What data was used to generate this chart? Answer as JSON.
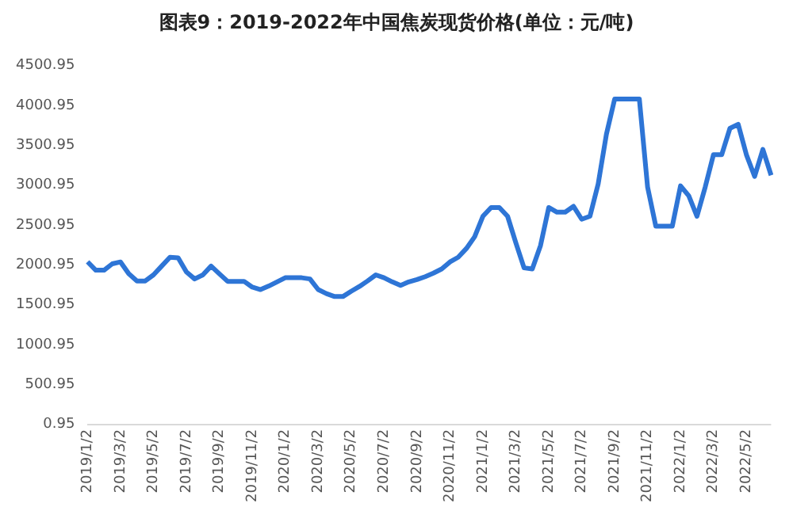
{
  "chart_data": {
    "type": "line",
    "title": "图表9：2019-2022年中国焦炭现货价格(单位：元/吨)",
    "categories": [
      "2019/1/2",
      null,
      null,
      null,
      "2019/3/2",
      null,
      null,
      null,
      "2019/5/2",
      null,
      null,
      null,
      "2019/7/2",
      null,
      null,
      null,
      "2019/9/2",
      null,
      null,
      null,
      "2019/11/2",
      null,
      null,
      null,
      "2020/1/2",
      null,
      null,
      null,
      "2020/3/2",
      null,
      null,
      null,
      "2020/5/2",
      null,
      null,
      null,
      "2020/7/2",
      null,
      null,
      null,
      "2020/9/2",
      null,
      null,
      null,
      "2020/11/2",
      null,
      null,
      null,
      "2021/1/2",
      null,
      null,
      null,
      "2021/3/2",
      null,
      null,
      null,
      "2021/5/2",
      null,
      null,
      null,
      "2021/7/2",
      null,
      null,
      null,
      "2021/9/2",
      null,
      null,
      null,
      "2021/11/2",
      null,
      null,
      null,
      "2022/1/2",
      null,
      null,
      null,
      "2022/3/2",
      null,
      null,
      null,
      "2022/5/2",
      null,
      null,
      null
    ],
    "series": [
      {
        "color": "#2e75d6",
        "values": [
          2040,
          1935,
          1935,
          2015,
          2038,
          1890,
          1800,
          1800,
          1876,
          1986,
          2097,
          2090,
          1913,
          1825,
          1876,
          1986,
          1890,
          1795,
          1795,
          1795,
          1722,
          1692,
          1736,
          1788,
          1840,
          1840,
          1840,
          1825,
          1692,
          1641,
          1604,
          1604,
          1670,
          1730,
          1800,
          1876,
          1840,
          1788,
          1744,
          1788,
          1817,
          1854,
          1898,
          1950,
          2038,
          2097,
          2207,
          2354,
          2611,
          2721,
          2721,
          2611,
          2280,
          1964,
          1950,
          2244,
          2721,
          2663,
          2663,
          2736,
          2574,
          2611,
          3015,
          3640,
          4081,
          4081,
          4081,
          4081,
          2978,
          2486,
          2486,
          2486,
          2993,
          2868,
          2611,
          2978,
          3383,
          3383,
          3714,
          3765,
          3383,
          3111,
          3449,
          3125
        ]
      }
    ],
    "ylim": [
      0.95,
      4500.95
    ],
    "yticks": [
      0.95,
      500.95,
      1000.95,
      1500.95,
      2000.95,
      2500.95,
      3000.95,
      3500.95,
      4000.95,
      4500.95
    ],
    "grid": false,
    "legend": false,
    "marker": "none",
    "line_style": "solid"
  }
}
